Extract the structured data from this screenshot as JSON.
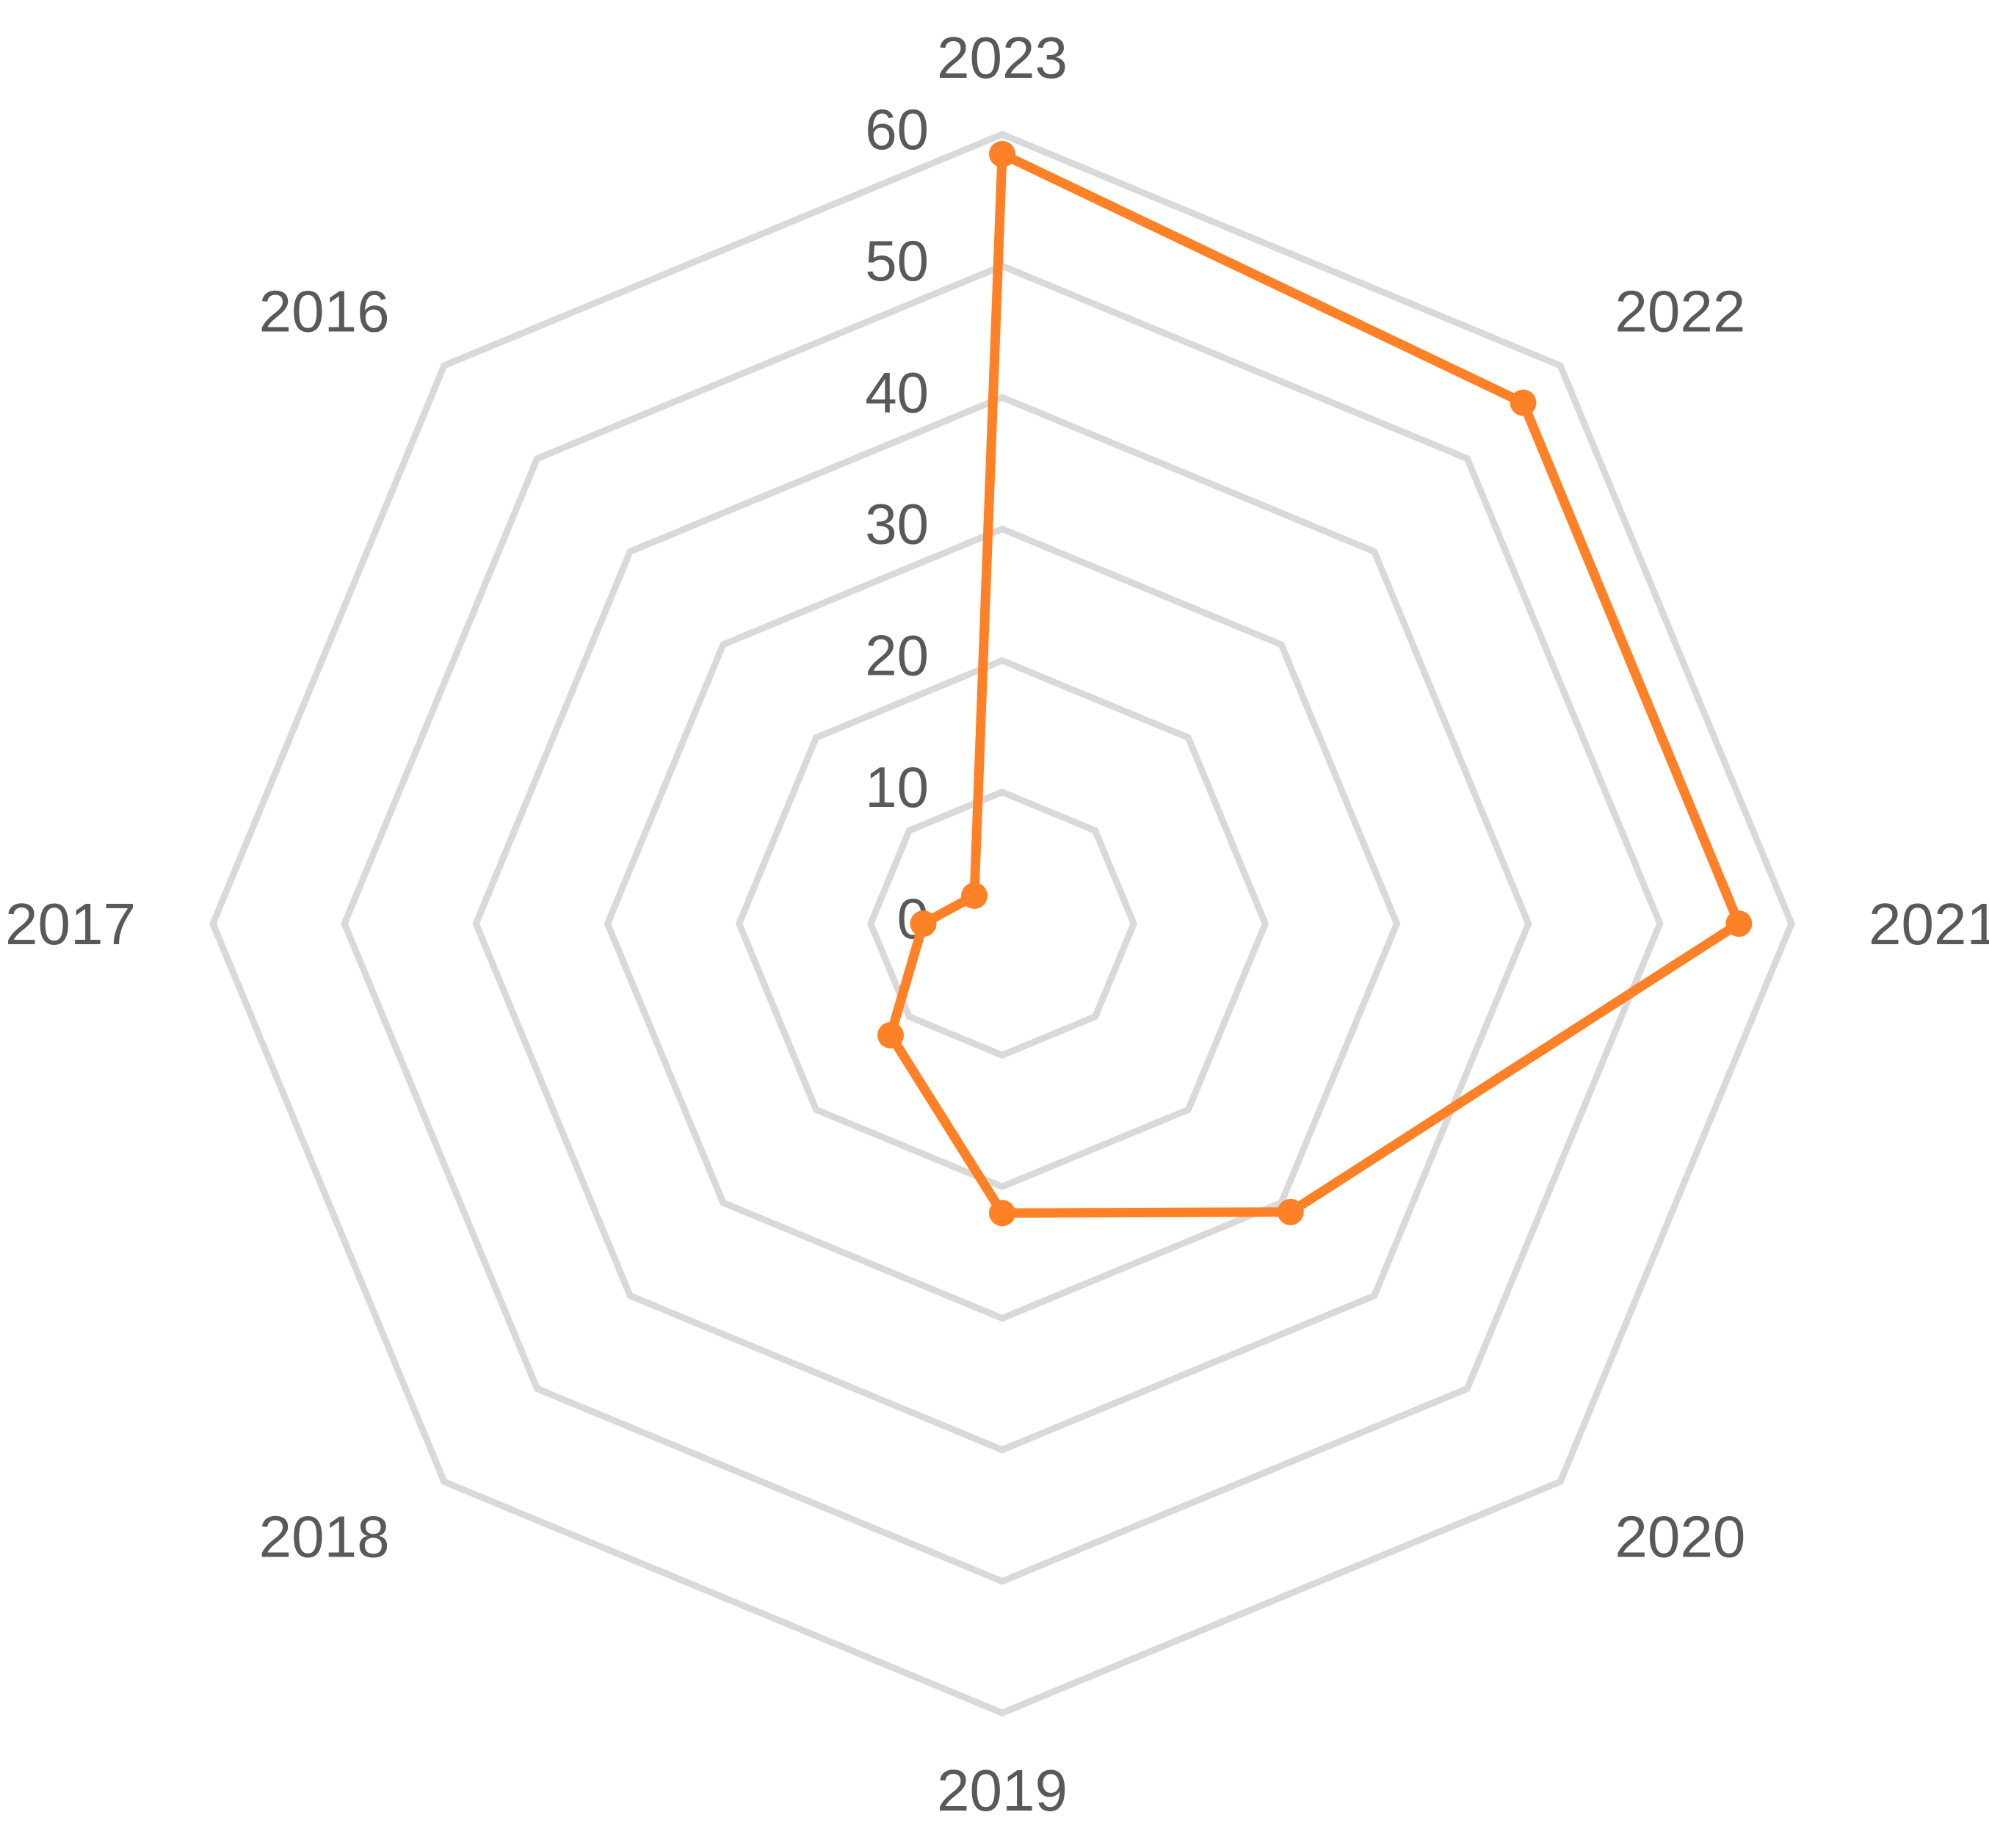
{
  "chart_data": {
    "type": "radar",
    "title": "",
    "categories": [
      "2023",
      "2022",
      "2021",
      "2020",
      "2019",
      "2018",
      "2017",
      "2016"
    ],
    "series": [
      {
        "values": [
          58.5,
          56,
          56,
          31,
          22,
          12,
          6,
          3
        ],
        "color": "#FF8127"
      }
    ],
    "radial_range": [
      0,
      60
    ],
    "radial_ticks": [
      0,
      10,
      20,
      30,
      40,
      50,
      60
    ],
    "grid": true,
    "legend": "none",
    "colors": {
      "grid": "#D9D9D9",
      "text": "#595959",
      "series": "#FF8127"
    }
  }
}
